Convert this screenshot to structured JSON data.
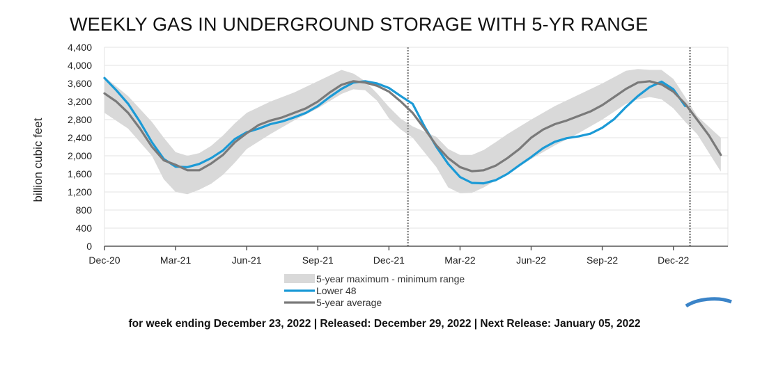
{
  "chart_data": {
    "type": "line",
    "title": "WEEKLY GAS IN UNDERGROUND STORAGE WITH 5-YR RANGE",
    "ylabel": "billion cubic feet",
    "ylim": [
      0,
      4400
    ],
    "yticks": [
      0,
      400,
      800,
      1200,
      1600,
      2000,
      2400,
      2800,
      3200,
      3600,
      4000,
      4400
    ],
    "ytick_labels": [
      "0",
      "400",
      "800",
      "1,200",
      "1,600",
      "2,000",
      "2,400",
      "2,800",
      "3,200",
      "3,600",
      "4,000",
      "4,400"
    ],
    "xticks": [
      0,
      3,
      6,
      9,
      12,
      15,
      18,
      21,
      24
    ],
    "xtick_labels": [
      "Dec-20",
      "Mar-21",
      "Jun-21",
      "Sep-21",
      "Dec-21",
      "Mar-22",
      "Jun-22",
      "Sep-22",
      "Dec-22"
    ],
    "xlim": [
      0,
      26.3
    ],
    "grid": true,
    "legend_position": "bottom",
    "vlines": [
      12.8,
      24.7
    ],
    "series": [
      {
        "name": "5-year maximum - minimum range",
        "type": "band",
        "color": "#d9d9d9",
        "x": [
          0,
          1,
          2,
          2.5,
          3,
          3.5,
          4,
          4.5,
          5,
          5.5,
          6,
          7,
          8,
          9,
          10,
          10.5,
          11,
          11.5,
          12,
          12.5,
          13,
          14,
          14.5,
          15,
          15.5,
          16,
          16.5,
          17,
          18,
          19,
          20,
          21,
          22,
          22.5,
          23,
          23.5,
          24,
          24.5,
          25,
          26
        ],
        "upper": [
          3750,
          3320,
          2750,
          2400,
          2080,
          2000,
          2060,
          2220,
          2450,
          2720,
          2950,
          3200,
          3400,
          3650,
          3900,
          3820,
          3650,
          3380,
          3080,
          2820,
          2650,
          2420,
          2150,
          2020,
          2020,
          2130,
          2300,
          2480,
          2800,
          3100,
          3350,
          3600,
          3880,
          3920,
          3900,
          3900,
          3700,
          3300,
          2880,
          2400
        ],
        "lower": [
          2950,
          2600,
          2000,
          1480,
          1200,
          1150,
          1250,
          1380,
          1580,
          1850,
          2150,
          2480,
          2780,
          3050,
          3370,
          3470,
          3450,
          3220,
          2830,
          2580,
          2400,
          1750,
          1300,
          1170,
          1180,
          1300,
          1450,
          1600,
          1930,
          2230,
          2500,
          2800,
          3150,
          3250,
          3300,
          3250,
          3050,
          2750,
          2480,
          1650
        ]
      },
      {
        "name": "Lower 48",
        "type": "line",
        "color": "#1b9ad6",
        "x": [
          0,
          0.5,
          1,
          1.5,
          2,
          2.5,
          3,
          3.5,
          4,
          4.5,
          5,
          5.5,
          6,
          6.5,
          7,
          7.5,
          8,
          8.5,
          9,
          9.5,
          10,
          10.5,
          11,
          11.5,
          12,
          12.5,
          13,
          13.5,
          14,
          14.5,
          15,
          15.5,
          16,
          16.5,
          17,
          17.5,
          18,
          18.5,
          19,
          19.5,
          20,
          20.5,
          21,
          21.5,
          22,
          22.5,
          23,
          23.5,
          24,
          24.5
        ],
        "y": [
          3720,
          3450,
          3150,
          2750,
          2300,
          1930,
          1760,
          1750,
          1820,
          1950,
          2120,
          2370,
          2520,
          2600,
          2700,
          2760,
          2850,
          2950,
          3100,
          3300,
          3480,
          3620,
          3650,
          3600,
          3500,
          3320,
          3150,
          2650,
          2200,
          1820,
          1530,
          1400,
          1390,
          1460,
          1600,
          1790,
          1970,
          2170,
          2310,
          2390,
          2430,
          2490,
          2620,
          2810,
          3080,
          3320,
          3520,
          3640,
          3470,
          3100
        ]
      },
      {
        "name": "5-year average",
        "type": "line",
        "color": "#7a7a7a",
        "x": [
          0,
          0.5,
          1,
          1.5,
          2,
          2.5,
          3,
          3.5,
          4,
          4.5,
          5,
          5.5,
          6,
          6.5,
          7,
          7.5,
          8,
          8.5,
          9,
          9.5,
          10,
          10.5,
          11,
          11.5,
          12,
          12.5,
          13,
          13.5,
          14,
          14.5,
          15,
          15.5,
          16,
          16.5,
          17,
          17.5,
          18,
          18.5,
          19,
          19.5,
          20,
          20.5,
          21,
          21.5,
          22,
          22.5,
          23,
          23.5,
          24,
          24.5,
          25,
          25.5,
          26
        ],
        "y": [
          3380,
          3200,
          2950,
          2600,
          2200,
          1900,
          1800,
          1680,
          1680,
          1830,
          2020,
          2300,
          2500,
          2680,
          2780,
          2850,
          2950,
          3050,
          3200,
          3400,
          3570,
          3650,
          3620,
          3550,
          3420,
          3200,
          2950,
          2600,
          2230,
          1950,
          1750,
          1660,
          1680,
          1780,
          1950,
          2150,
          2400,
          2580,
          2700,
          2780,
          2880,
          2980,
          3120,
          3300,
          3480,
          3620,
          3650,
          3580,
          3420,
          3150,
          2800,
          2450,
          2020
        ]
      }
    ]
  },
  "legend": {
    "items": [
      {
        "label": "5-year maximum - minimum range",
        "swatch": "band",
        "color": "#d9d9d9"
      },
      {
        "label": "Lower 48",
        "swatch": "line",
        "color": "#1b9ad6"
      },
      {
        "label": "5-year average",
        "swatch": "line",
        "color": "#7a7a7a"
      }
    ]
  },
  "footer": {
    "text": "for week ending December 23, 2022   |   Released: December 29, 2022   |   Next Release: January 05, 2022"
  }
}
